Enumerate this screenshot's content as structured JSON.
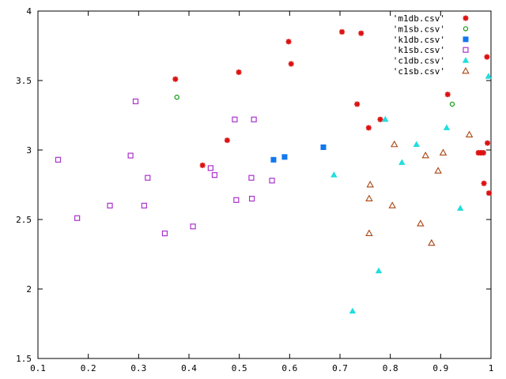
{
  "chart_data": {
    "type": "scatter",
    "title": "",
    "xlabel": "",
    "ylabel": "",
    "xlim": [
      0.1,
      1.0
    ],
    "ylim": [
      1.5,
      4.0
    ],
    "grid": false,
    "legend_position": "top-right",
    "x_ticks": [
      "0.1",
      "0.2",
      "0.3",
      "0.4",
      "0.5",
      "0.6",
      "0.7",
      "0.8",
      "0.9",
      "1"
    ],
    "x_tick_values": [
      0.1,
      0.2,
      0.3,
      0.4,
      0.5,
      0.6,
      0.7,
      0.8,
      0.9,
      1.0
    ],
    "y_ticks": [
      "1.5",
      "2",
      "2.5",
      "3",
      "3.5",
      "4"
    ],
    "y_tick_values": [
      1.5,
      2.0,
      2.5,
      3.0,
      3.5,
      4.0
    ],
    "series": [
      {
        "name": "'m1db.csv'",
        "marker": "star",
        "color": "#dd1111",
        "points": [
          [
            0.373,
            3.51
          ],
          [
            0.427,
            2.89
          ],
          [
            0.476,
            3.07
          ],
          [
            0.499,
            3.56
          ],
          [
            0.598,
            3.78
          ],
          [
            0.603,
            3.62
          ],
          [
            0.704,
            3.85
          ],
          [
            0.734,
            3.33
          ],
          [
            0.742,
            3.84
          ],
          [
            0.757,
            3.16
          ],
          [
            0.78,
            3.22
          ],
          [
            0.914,
            3.4
          ],
          [
            0.975,
            2.98
          ],
          [
            0.98,
            2.98
          ],
          [
            0.985,
            2.98
          ],
          [
            0.986,
            2.76
          ],
          [
            0.992,
            3.67
          ],
          [
            0.993,
            3.05
          ],
          [
            0.996,
            2.69
          ]
        ]
      },
      {
        "name": "'m1sb.csv'",
        "marker": "circle",
        "color": "#119911",
        "points": [
          [
            0.376,
            3.38
          ],
          [
            0.923,
            3.33
          ]
        ]
      },
      {
        "name": "'k1db.csv'",
        "marker": "square-filled",
        "color": "#1177ee",
        "points": [
          [
            0.568,
            2.93
          ],
          [
            0.59,
            2.95
          ],
          [
            0.667,
            3.02
          ]
        ]
      },
      {
        "name": "'k1sb.csv'",
        "marker": "square-open",
        "color": "#aa33cc",
        "points": [
          [
            0.14,
            2.93
          ],
          [
            0.178,
            2.51
          ],
          [
            0.243,
            2.6
          ],
          [
            0.284,
            2.96
          ],
          [
            0.294,
            3.35
          ],
          [
            0.311,
            2.6
          ],
          [
            0.318,
            2.8
          ],
          [
            0.352,
            2.4
          ],
          [
            0.408,
            2.45
          ],
          [
            0.443,
            2.87
          ],
          [
            0.451,
            2.82
          ],
          [
            0.491,
            3.22
          ],
          [
            0.494,
            2.64
          ],
          [
            0.524,
            2.8
          ],
          [
            0.525,
            2.65
          ],
          [
            0.529,
            3.22
          ],
          [
            0.565,
            2.78
          ]
        ]
      },
      {
        "name": "'c1db.csv'",
        "marker": "triangle-filled",
        "color": "#22dddd",
        "points": [
          [
            0.688,
            2.82
          ],
          [
            0.725,
            1.84
          ],
          [
            0.777,
            2.13
          ],
          [
            0.79,
            3.22
          ],
          [
            0.823,
            2.91
          ],
          [
            0.852,
            3.04
          ],
          [
            0.912,
            3.16
          ],
          [
            0.939,
            2.58
          ],
          [
            0.995,
            3.53
          ]
        ]
      },
      {
        "name": "'c1sb.csv'",
        "marker": "triangle-open",
        "color": "#aa4411",
        "points": [
          [
            0.758,
            2.65
          ],
          [
            0.758,
            2.4
          ],
          [
            0.76,
            2.75
          ],
          [
            0.804,
            2.6
          ],
          [
            0.808,
            3.04
          ],
          [
            0.86,
            2.47
          ],
          [
            0.87,
            2.96
          ],
          [
            0.882,
            2.33
          ],
          [
            0.895,
            2.85
          ],
          [
            0.905,
            2.98
          ],
          [
            0.957,
            3.11
          ]
        ]
      }
    ]
  }
}
